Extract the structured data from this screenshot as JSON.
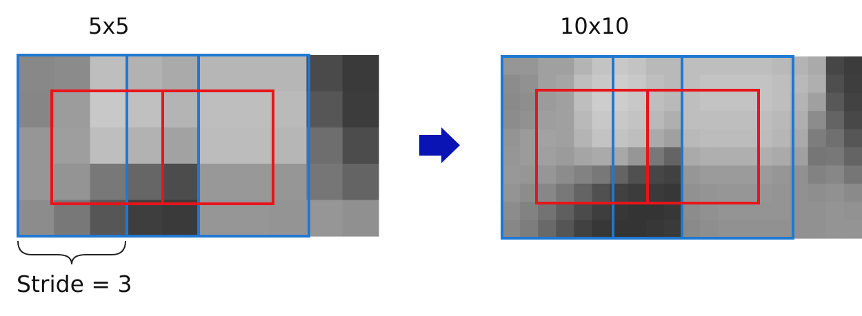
{
  "labels": {
    "left_grid": "5x5",
    "right_grid": "10x10",
    "stride": "Stride = 3"
  },
  "colors": {
    "window_blue": "#1f78d1",
    "window_red": "#e8141b",
    "arrow": "#0a14b4",
    "brace": "#222222"
  },
  "left_patch": {
    "rows": 5,
    "cols": 10,
    "cells": [
      [
        136,
        139,
        190,
        178,
        170,
        182,
        182,
        182,
        74,
        58
      ],
      [
        134,
        156,
        200,
        192,
        180,
        190,
        190,
        186,
        86,
        60
      ],
      [
        150,
        158,
        190,
        178,
        162,
        188,
        188,
        182,
        110,
        76
      ],
      [
        150,
        148,
        120,
        102,
        76,
        152,
        152,
        150,
        118,
        100
      ],
      [
        140,
        120,
        86,
        62,
        58,
        150,
        150,
        148,
        150,
        144
      ]
    ]
  },
  "right_patch": {
    "rows": 10,
    "cols": 20,
    "cells": [
      [
        150,
        150,
        160,
        160,
        180,
        195,
        200,
        195,
        185,
        185,
        190,
        190,
        190,
        190,
        190,
        185,
        180,
        170,
        70,
        60
      ],
      [
        140,
        145,
        160,
        165,
        190,
        200,
        205,
        200,
        190,
        185,
        190,
        195,
        195,
        195,
        195,
        190,
        185,
        175,
        78,
        62
      ],
      [
        138,
        142,
        155,
        160,
        190,
        205,
        205,
        200,
        190,
        185,
        190,
        195,
        195,
        195,
        195,
        190,
        180,
        160,
        88,
        66
      ],
      [
        140,
        145,
        158,
        160,
        185,
        200,
        200,
        195,
        185,
        175,
        190,
        190,
        190,
        190,
        190,
        185,
        175,
        140,
        100,
        72
      ],
      [
        148,
        155,
        162,
        160,
        180,
        195,
        195,
        190,
        170,
        160,
        185,
        188,
        188,
        188,
        188,
        182,
        170,
        125,
        112,
        86
      ],
      [
        150,
        155,
        160,
        155,
        165,
        170,
        168,
        150,
        120,
        100,
        170,
        175,
        175,
        175,
        175,
        170,
        160,
        118,
        120,
        100
      ],
      [
        152,
        150,
        150,
        140,
        130,
        120,
        100,
        80,
        70,
        65,
        150,
        155,
        155,
        155,
        155,
        150,
        145,
        130,
        135,
        118
      ],
      [
        148,
        140,
        135,
        120,
        100,
        80,
        65,
        60,
        58,
        55,
        145,
        148,
        150,
        150,
        150,
        148,
        145,
        142,
        145,
        138
      ],
      [
        140,
        130,
        115,
        95,
        75,
        62,
        55,
        52,
        52,
        55,
        140,
        145,
        148,
        148,
        148,
        148,
        145,
        145,
        148,
        146
      ],
      [
        135,
        125,
        105,
        85,
        65,
        55,
        52,
        52,
        55,
        58,
        138,
        142,
        145,
        145,
        145,
        145,
        145,
        145,
        148,
        148
      ]
    ]
  }
}
